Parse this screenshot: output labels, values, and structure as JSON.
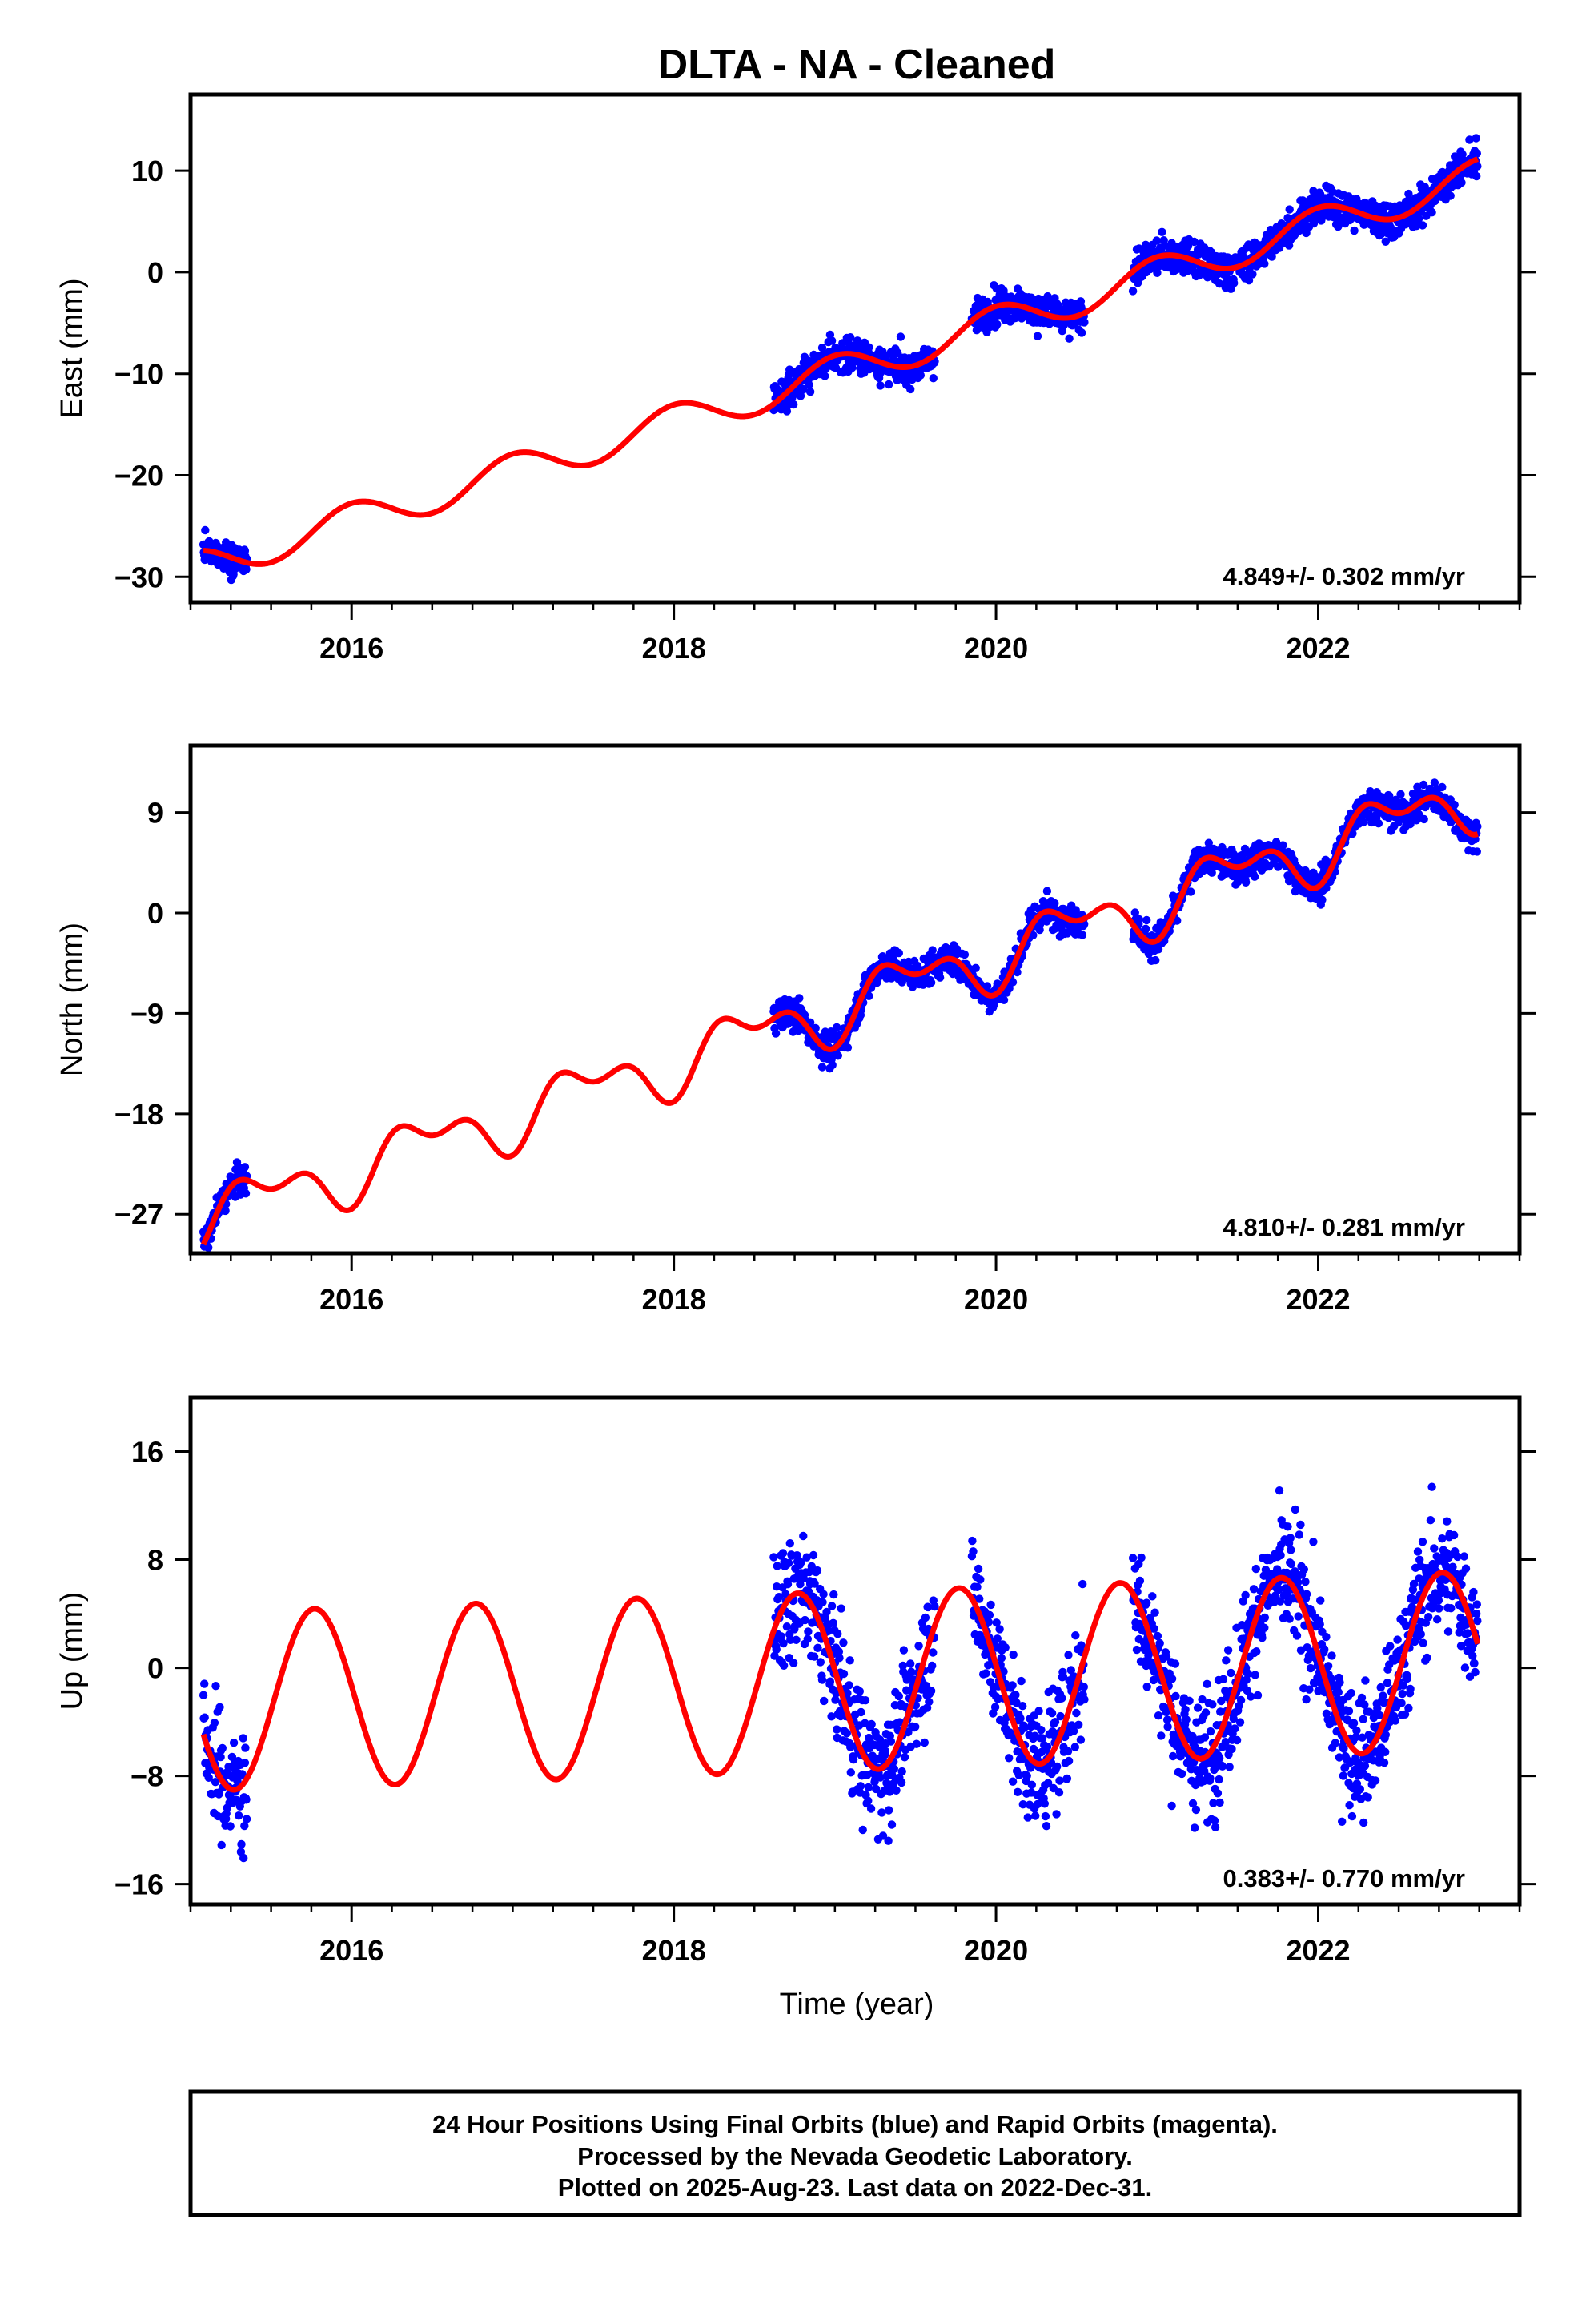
{
  "title": "DLTA  - NA - Cleaned",
  "xlabel": "Time (year)",
  "footer": {
    "line1": "24 Hour Positions Using Final Orbits (blue) and Rapid Orbits (magenta).",
    "line2": "Processed by the Nevada Geodetic Laboratory.",
    "line3": "Plotted on 2025-Aug-23. Last data on 2022-Dec-31."
  },
  "colors": {
    "points": "#0000ff",
    "model": "#ff0000",
    "frame": "#000000"
  },
  "chart_data": [
    {
      "type": "scatter",
      "component": "east",
      "ylabel": "East (mm)",
      "xlim": [
        2015.0,
        2023.25
      ],
      "ylim": [
        -32.5,
        17.5
      ],
      "xticks": [
        2016,
        2018,
        2020,
        2022
      ],
      "xtick_labels": [
        "2016",
        "2018",
        "2020",
        "2022"
      ],
      "yticks": [
        10,
        0,
        -10,
        -20,
        -30
      ],
      "ytick_labels": [
        "10",
        "0",
        "−10",
        "−20",
        "−30"
      ],
      "rate_text": "4.849+/- 0.302 mm/yr",
      "model": {
        "rate": 4.849,
        "ref_year": 2019.0,
        "offset": -9.9,
        "annual_amp": 1.7,
        "annual_peak": 2019.0,
        "semi_amp": 0.0,
        "semi_peak": 2019.0
      },
      "data_segments": [
        {
          "start": 2015.08,
          "end": 2015.35,
          "scatter": 1.0
        },
        {
          "start": 2018.62,
          "end": 2019.62,
          "scatter": 1.2
        },
        {
          "start": 2019.85,
          "end": 2020.55,
          "scatter": 1.2
        },
        {
          "start": 2020.85,
          "end": 2022.99,
          "scatter": 1.2
        }
      ],
      "series": [
        {
          "name": "Final Orbits",
          "values": "daily positions, about 1500 days"
        },
        {
          "name": "Rapid Orbits",
          "values": []
        }
      ]
    },
    {
      "type": "scatter",
      "component": "north",
      "ylabel": "North (mm)",
      "xlim": [
        2015.0,
        2023.25
      ],
      "ylim": [
        -30.5,
        15.0
      ],
      "xticks": [
        2016,
        2018,
        2020,
        2022
      ],
      "xtick_labels": [
        "2016",
        "2018",
        "2020",
        "2022"
      ],
      "yticks": [
        9,
        0,
        -9,
        -18,
        -27
      ],
      "ytick_labels": [
        "9",
        "0",
        "−9",
        "−18",
        "−27"
      ],
      "rate_text": "4.810+/- 0.281 mm/yr",
      "model": {
        "rate": 4.81,
        "ref_year": 2019.0,
        "offset": -8.6,
        "annual_amp": 2.2,
        "annual_peak": 2019.45,
        "semi_amp": 1.4,
        "semi_peak": 2019.25
      },
      "data_segments": [
        {
          "start": 2015.08,
          "end": 2015.35,
          "scatter": 0.9
        },
        {
          "start": 2018.62,
          "end": 2020.55,
          "scatter": 1.0
        },
        {
          "start": 2020.85,
          "end": 2022.99,
          "scatter": 1.0
        }
      ],
      "series": [
        {
          "name": "Final Orbits",
          "values": "daily positions, about 1500 days"
        },
        {
          "name": "Rapid Orbits",
          "values": []
        }
      ]
    },
    {
      "type": "scatter",
      "component": "up",
      "ylabel": "Up (mm)",
      "xlim": [
        2015.0,
        2023.25
      ],
      "ylim": [
        -17.5,
        20.0
      ],
      "xticks": [
        2016,
        2018,
        2020,
        2022
      ],
      "xtick_labels": [
        "2016",
        "2018",
        "2020",
        "2022"
      ],
      "yticks": [
        16,
        8,
        0,
        -8,
        -16
      ],
      "ytick_labels": [
        "16",
        "8",
        "0",
        "−8",
        "−16"
      ],
      "rate_text": "0.383+/- 0.770 mm/yr",
      "model": {
        "rate": 0.383,
        "ref_year": 2019.0,
        "offset": -1.0,
        "annual_amp": 6.6,
        "annual_peak": 2019.77,
        "semi_amp": 0.0,
        "semi_peak": 2019.0
      },
      "data_segments": [
        {
          "start": 2015.08,
          "end": 2015.35,
          "scatter": 3.2
        },
        {
          "start": 2018.62,
          "end": 2019.62,
          "scatter": 3.2
        },
        {
          "start": 2019.85,
          "end": 2020.55,
          "scatter": 3.2
        },
        {
          "start": 2020.85,
          "end": 2022.99,
          "scatter": 3.2
        }
      ],
      "series": [
        {
          "name": "Final Orbits",
          "values": "daily positions, about 1500 days"
        },
        {
          "name": "Rapid Orbits",
          "values": []
        }
      ]
    }
  ]
}
